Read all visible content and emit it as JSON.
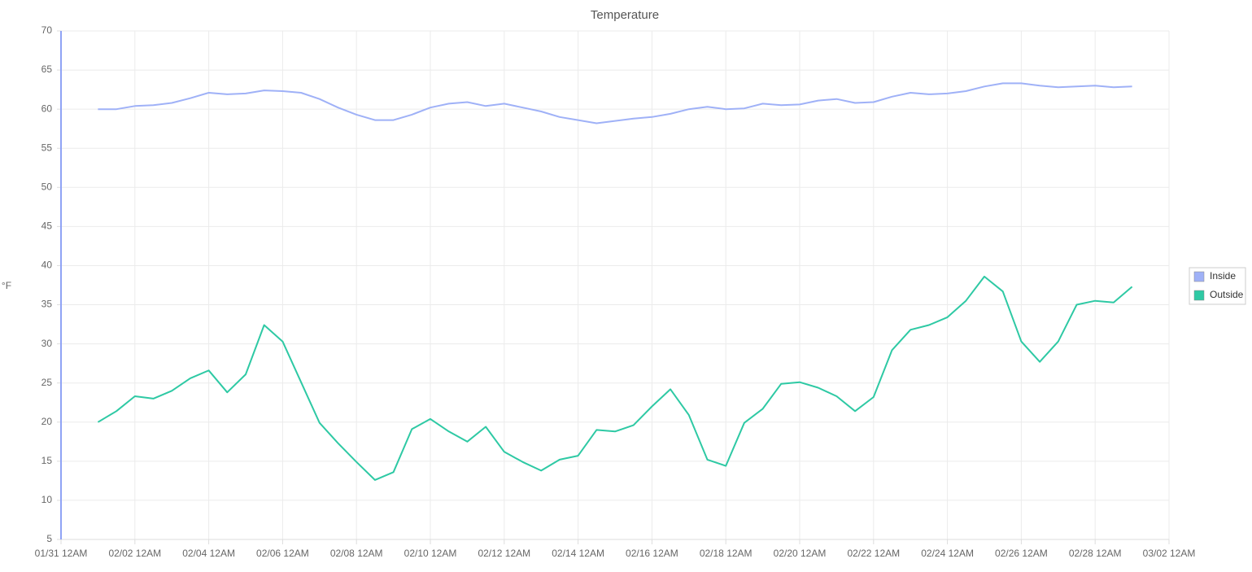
{
  "chart_data": {
    "type": "line",
    "title": "Temperature",
    "y_label": "°F",
    "x": [
      "02/01 12AM",
      "02/01 12PM",
      "02/02 12AM",
      "02/02 12PM",
      "02/03 12AM",
      "02/03 12PM",
      "02/04 12AM",
      "02/04 12PM",
      "02/05 12AM",
      "02/05 12PM",
      "02/06 12AM",
      "02/06 12PM",
      "02/07 12AM",
      "02/07 12PM",
      "02/08 12AM",
      "02/08 12PM",
      "02/09 12AM",
      "02/09 12PM",
      "02/10 12AM",
      "02/10 12PM",
      "02/11 12AM",
      "02/11 12PM",
      "02/12 12AM",
      "02/12 12PM",
      "02/13 12AM",
      "02/13 12PM",
      "02/14 12AM",
      "02/14 12PM",
      "02/15 12AM",
      "02/15 12PM",
      "02/16 12AM",
      "02/16 12PM",
      "02/17 12AM",
      "02/17 12PM",
      "02/18 12AM",
      "02/18 12PM",
      "02/19 12AM",
      "02/19 12PM",
      "02/20 12AM",
      "02/20 12PM",
      "02/21 12AM",
      "02/21 12PM",
      "02/22 12AM",
      "02/22 12PM",
      "02/23 12AM",
      "02/23 12PM",
      "02/24 12AM",
      "02/24 12PM",
      "02/25 12AM",
      "02/25 12PM",
      "02/26 12AM",
      "02/26 12PM",
      "02/27 12AM",
      "02/27 12PM",
      "02/28 12AM",
      "02/28 12PM",
      "03/01 12AM"
    ],
    "series": [
      {
        "name": "Inside",
        "color": "#9fb1f7",
        "values": [
          60.0,
          60.0,
          60.4,
          60.5,
          60.8,
          61.4,
          62.1,
          61.9,
          62.0,
          62.4,
          62.3,
          62.1,
          61.3,
          60.2,
          59.3,
          58.6,
          58.6,
          59.3,
          60.2,
          60.7,
          60.9,
          60.4,
          60.7,
          60.2,
          59.7,
          59.0,
          58.6,
          58.2,
          58.5,
          58.8,
          59.0,
          59.4,
          60.0,
          60.3,
          60.0,
          60.1,
          60.7,
          60.5,
          60.6,
          61.1,
          61.3,
          60.8,
          60.9,
          61.6,
          62.1,
          61.9,
          62.0,
          62.3,
          62.9,
          63.3,
          63.3,
          63.0,
          62.8,
          62.9,
          63.0,
          62.8,
          62.9
        ]
      },
      {
        "name": "Outside",
        "color": "#2ec9a4",
        "values": [
          20.0,
          21.4,
          23.3,
          23.0,
          24.0,
          25.6,
          26.6,
          23.8,
          26.1,
          32.4,
          30.3,
          25.1,
          19.9,
          17.3,
          14.9,
          12.6,
          13.6,
          19.1,
          20.4,
          18.8,
          17.5,
          19.4,
          16.2,
          14.9,
          13.8,
          15.2,
          15.7,
          19.0,
          18.8,
          19.6,
          22.0,
          24.2,
          20.9,
          15.2,
          14.4,
          19.9,
          21.7,
          24.9,
          25.1,
          24.4,
          23.3,
          21.4,
          23.2,
          29.2,
          31.8,
          32.4,
          33.4,
          35.5,
          38.6,
          36.7,
          30.3,
          27.7,
          30.3,
          35.0,
          35.5,
          35.3,
          37.3
        ]
      }
    ],
    "xlim": [
      "01/31 12AM",
      "03/02 12AM"
    ],
    "xticks": [
      "01/31 12AM",
      "02/02 12AM",
      "02/04 12AM",
      "02/06 12AM",
      "02/08 12AM",
      "02/10 12AM",
      "02/12 12AM",
      "02/14 12AM",
      "02/16 12AM",
      "02/18 12AM",
      "02/20 12AM",
      "02/22 12AM",
      "02/24 12AM",
      "02/26 12AM",
      "02/28 12AM",
      "03/02 12AM"
    ],
    "ylim": [
      5,
      70
    ],
    "yticks": [
      5,
      10,
      15,
      20,
      25,
      30,
      35,
      40,
      45,
      50,
      55,
      60,
      65,
      70
    ],
    "grid": true,
    "legend": "right"
  }
}
